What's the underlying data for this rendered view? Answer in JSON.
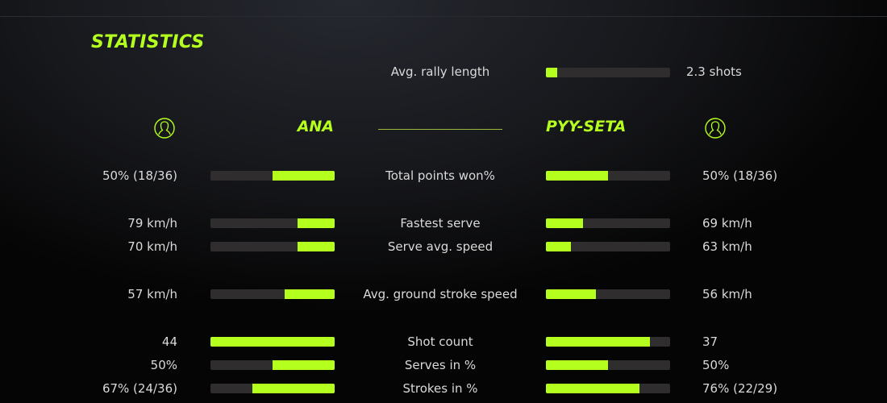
{
  "title": "STATISTICS",
  "accent_color": "#b5ff1e",
  "rally": {
    "label": "Avg. rally length",
    "value": "2.3 shots",
    "fraction": 0.09
  },
  "players": {
    "left": {
      "name": "ANA",
      "icon": "user-icon"
    },
    "right": {
      "name": "PYY-SETA",
      "icon": "user-icon"
    }
  },
  "stats": [
    {
      "label": "Total points won%",
      "left": "50% (18/36)",
      "right": "50% (18/36)",
      "left_fraction": 0.5,
      "right_fraction": 0.5
    },
    {
      "label": "Fastest serve",
      "left": "79 km/h",
      "right": "69 km/h",
      "left_fraction": 0.3,
      "right_fraction": 0.3
    },
    {
      "label": "Serve avg. speed",
      "left": "70 km/h",
      "right": "63 km/h",
      "left_fraction": 0.3,
      "right_fraction": 0.2
    },
    {
      "label": "Avg. ground stroke speed",
      "left": "57 km/h",
      "right": "56 km/h",
      "left_fraction": 0.4,
      "right_fraction": 0.4
    },
    {
      "label": "Shot count",
      "left": "44",
      "right": "37",
      "left_fraction": 1.0,
      "right_fraction": 0.84
    },
    {
      "label": "Serves in %",
      "left": "50%",
      "right": "50%",
      "left_fraction": 0.5,
      "right_fraction": 0.5
    },
    {
      "label": "Strokes in %",
      "left": "67% (24/36)",
      "right": "76% (22/29)",
      "left_fraction": 0.66,
      "right_fraction": 0.75
    }
  ]
}
